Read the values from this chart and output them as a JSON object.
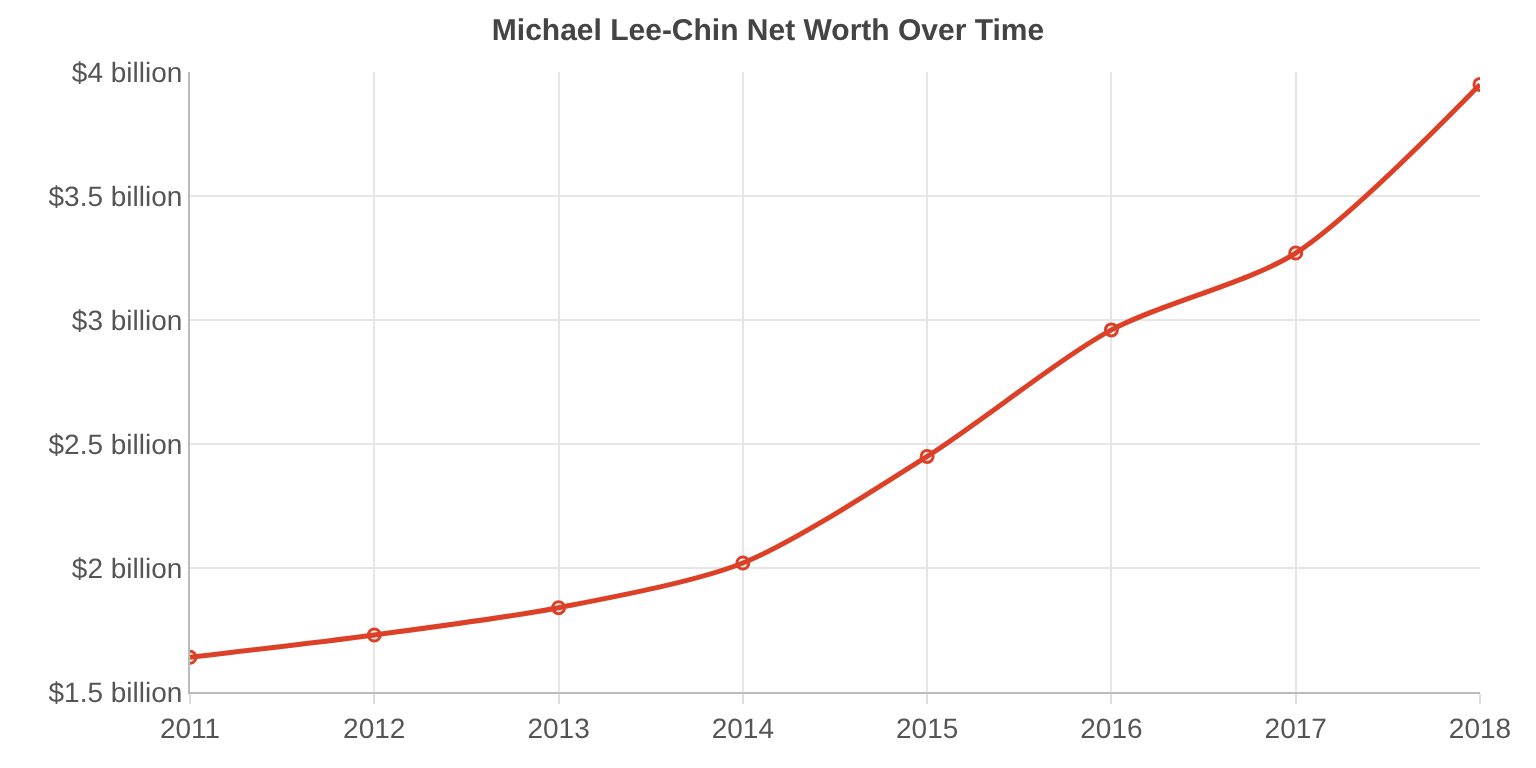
{
  "chart_data": {
    "type": "line",
    "title": "Michael Lee-Chin Net Worth Over Time",
    "x": [
      2011,
      2012,
      2013,
      2014,
      2015,
      2016,
      2017,
      2018
    ],
    "series": [
      {
        "color": "#dc4128",
        "values": [
          1.64,
          1.73,
          1.84,
          2.02,
          2.45,
          2.96,
          3.27,
          3.95
        ]
      }
    ],
    "xlim": [
      2011,
      2018
    ],
    "xticks": [
      2011,
      2012,
      2013,
      2014,
      2015,
      2016,
      2017,
      2018
    ],
    "ylim": [
      1.5,
      4
    ],
    "yticks": [
      {
        "value": 1.5,
        "label": "$1.5 billion"
      },
      {
        "value": 2,
        "label": "$2 billion"
      },
      {
        "value": 2.5,
        "label": "$2.5 billion"
      },
      {
        "value": 3,
        "label": "$3 billion"
      },
      {
        "value": 3.5,
        "label": "$3.5 billion"
      },
      {
        "value": 4,
        "label": "$4 billion"
      }
    ],
    "grid": true,
    "marker": "circle",
    "line_style": "solid"
  }
}
